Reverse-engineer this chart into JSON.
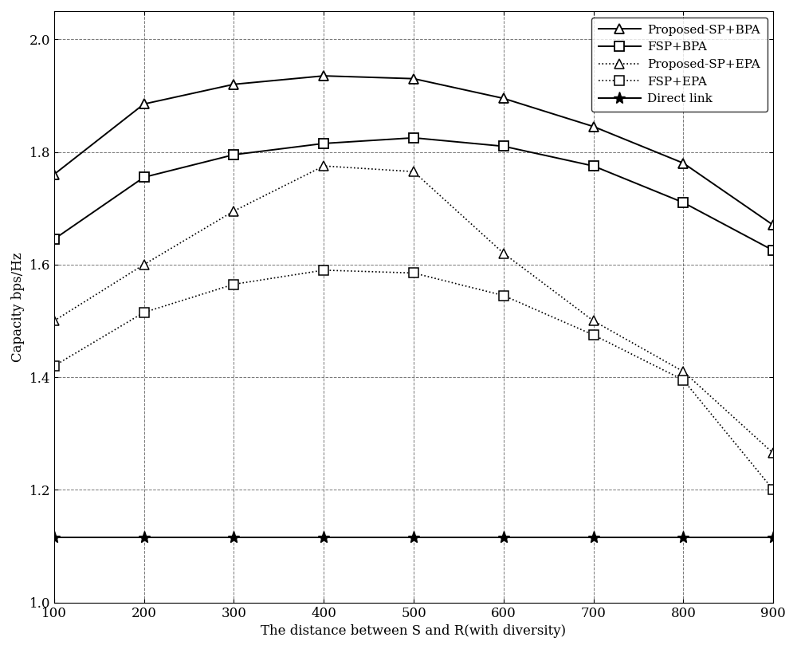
{
  "x": [
    100,
    200,
    300,
    400,
    500,
    600,
    700,
    800,
    900
  ],
  "proposed_sp_bpa": [
    1.76,
    1.885,
    1.92,
    1.935,
    1.93,
    1.895,
    1.845,
    1.78,
    1.67
  ],
  "fsp_bpa": [
    1.645,
    1.755,
    1.795,
    1.815,
    1.825,
    1.81,
    1.775,
    1.71,
    1.625
  ],
  "proposed_sp_epa": [
    1.5,
    1.6,
    1.695,
    1.775,
    1.765,
    1.62,
    1.5,
    1.41,
    1.265
  ],
  "fsp_epa": [
    1.42,
    1.515,
    1.565,
    1.59,
    1.585,
    1.545,
    1.475,
    1.395,
    1.2
  ],
  "direct_link": [
    1.115,
    1.115,
    1.115,
    1.115,
    1.115,
    1.115,
    1.115,
    1.115,
    1.115
  ],
  "xlabel": "The distance between S and R(with diversity)",
  "ylabel": "Capacity bps/Hz",
  "xlim": [
    100,
    900
  ],
  "ylim": [
    1.0,
    2.05
  ],
  "xticks": [
    100,
    200,
    300,
    400,
    500,
    600,
    700,
    800,
    900
  ],
  "yticks": [
    1.0,
    1.2,
    1.4,
    1.6,
    1.8,
    2.0
  ],
  "legend_labels": [
    "Proposed-SP+BPA",
    "FSP+BPA",
    "Proposed-SP+EPA",
    "FSP+EPA",
    "Direct link"
  ],
  "color_solid": "#000000",
  "figsize": [
    10.0,
    8.14
  ],
  "dpi": 100
}
